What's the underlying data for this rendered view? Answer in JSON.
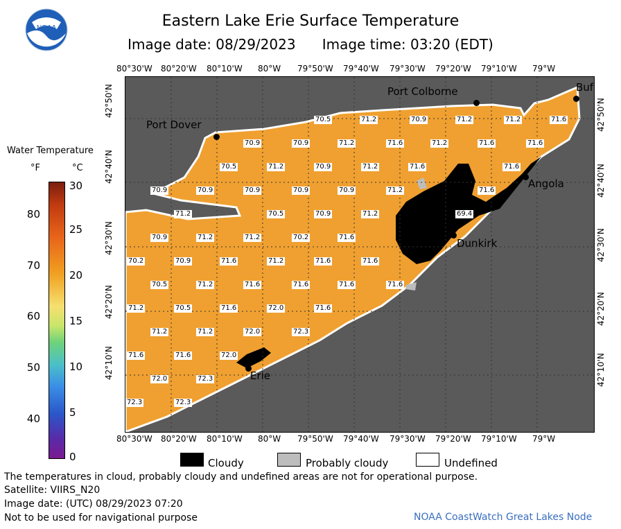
{
  "title": "Eastern Lake Erie Surface Temperature",
  "subtitle_date": "Image date: 08/29/2023",
  "subtitle_time": "Image time: 03:20 (EDT)",
  "logo_text": "NOAA",
  "lon_labels": [
    "80°30'W",
    "80°20'W",
    "80°10'W",
    "80°W",
    "79°50'W",
    "79°40'W",
    "79°30'W",
    "79°20'W",
    "79°10'W",
    "79°W"
  ],
  "lat_labels": [
    "42°50'N",
    "42°40'N",
    "42°30'N",
    "42°20'N",
    "42°10'N"
  ],
  "legend": {
    "title": "Water Temperature",
    "unit_f": "°F",
    "unit_c": "°C",
    "ticks_f": [
      "80",
      "70",
      "60",
      "50",
      "40"
    ],
    "ticks_c": [
      "30",
      "25",
      "20",
      "15",
      "10",
      "5",
      "0"
    ]
  },
  "cities": [
    "Port Colborne",
    "Port Dover",
    "Buf",
    "Angola",
    "Dunkirk",
    "Erie"
  ],
  "temps": [
    "70.5",
    "71.2",
    "70.9",
    "71.2",
    "71.2",
    "71.6",
    "70.9",
    "70.9",
    "71.2",
    "71.6",
    "71.2",
    "71.6",
    "71.6",
    "70.5",
    "71.2",
    "70.9",
    "71.2",
    "71.6",
    "71.6",
    "70.9",
    "70.9",
    "70.9",
    "70.9",
    "70.9",
    "71.2",
    "71.6",
    "71.2",
    "70.5",
    "70.9",
    "71.2",
    "69.4",
    "70.9",
    "71.2",
    "71.2",
    "70.2",
    "71.6",
    "70.2",
    "70.9",
    "71.6",
    "71.2",
    "71.6",
    "71.6",
    "70.5",
    "71.2",
    "71.6",
    "71.6",
    "71.6",
    "71.6",
    "71.2",
    "70.5",
    "71.6",
    "72.0",
    "71.6",
    "71.2",
    "71.2",
    "72.0",
    "72.3",
    "71.6",
    "71.6",
    "72.0",
    "72.0",
    "72.3",
    "72.3",
    "72.3"
  ],
  "legend_boxes": {
    "cloudy": "Cloudy",
    "probably_cloudy": "Probably cloudy",
    "undefined": "Undefined"
  },
  "notes": [
    "The temperatures in cloud, probably cloudy and undefined areas are not for operational purpose.",
    "Satellite: VIIRS_N20",
    "Image date: (UTC) 08/29/2023  07:20",
    "Not to be used for navigational purpose"
  ],
  "credit": "NOAA CoastWatch Great Lakes Node",
  "colors": {
    "water": "#f0a030",
    "land": "#5a5a5a",
    "cloud": "#000000",
    "probable": "#bdbdbd"
  }
}
